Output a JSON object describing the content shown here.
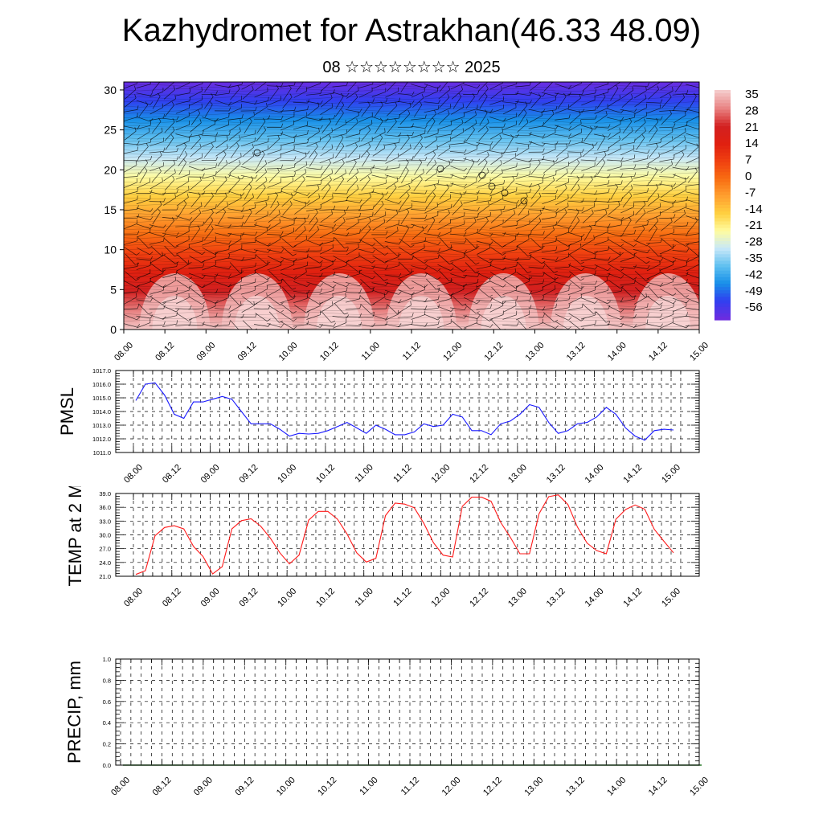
{
  "title": "Kazhydromet for Astrakhan(46.33 48.09)",
  "subtitle": "08 ☆☆☆☆☆☆☆☆ 2025",
  "chart_data": [
    {
      "type": "heatmap",
      "title": "",
      "xlabel": "",
      "ylabel": "",
      "x_tick_labels": [
        "08.00",
        "08.12",
        "09.00",
        "09.12",
        "10.00",
        "10.12",
        "11.00",
        "11.12",
        "12.00",
        "12.12",
        "13.00",
        "13.12",
        "14.00",
        "14.12",
        "15.00"
      ],
      "y_ticks": [
        0,
        5,
        10,
        15,
        20,
        25,
        30
      ],
      "ylim": [
        0,
        31
      ],
      "colorbar": {
        "labels": [
          "35",
          "28",
          "21",
          "14",
          "7",
          "0",
          "-7",
          "-14",
          "-21",
          "-28",
          "-35",
          "-42",
          "-49",
          "-56"
        ],
        "colors": [
          "#f4c8c8",
          "#e88080",
          "#d22020",
          "#e02010",
          "#f04010",
          "#f86d12",
          "#ffa030",
          "#ffd040",
          "#fffca0",
          "#c8e8f8",
          "#60c0f0",
          "#1890e8",
          "#3040f0",
          "#6a2ce0"
        ]
      },
      "wind_barbs": true
    },
    {
      "type": "line",
      "ylabel": "PMSL",
      "ylim": [
        1011.0,
        1017.0
      ],
      "y_tick_labels": [
        "1011.0",
        "1012.0",
        "1013.0",
        "1014.0",
        "1015.0",
        "1016.0",
        "1017.0"
      ],
      "x_tick_labels": [
        "08.00",
        "08.12",
        "09.00",
        "09.12",
        "10.00",
        "10.12",
        "11.00",
        "11.12",
        "12.00",
        "12.12",
        "13.00",
        "13.12",
        "14.00",
        "14.12",
        "15.00"
      ],
      "line_color": "#1a1aff",
      "series": [
        {
          "values": [
            1014.8,
            1016.0,
            1016.1,
            1015.2,
            1013.8,
            1013.5,
            1014.7,
            1014.7,
            1014.9,
            1015.1,
            1014.9,
            1014.0,
            1013.1,
            1013.1,
            1013.1,
            1012.7,
            1012.2,
            1012.4,
            1012.35,
            1012.4,
            1012.6,
            1012.9,
            1013.2,
            1012.8,
            1012.4,
            1013.0,
            1012.7,
            1012.3,
            1012.3,
            1012.5,
            1013.1,
            1012.9,
            1013.0,
            1013.8,
            1013.6,
            1012.6,
            1012.6,
            1012.3,
            1013.1,
            1013.3,
            1013.8,
            1014.5,
            1014.3,
            1013.2,
            1012.4,
            1012.6,
            1013.1,
            1013.2,
            1013.6,
            1014.3,
            1013.8,
            1012.8,
            1012.2,
            1011.9,
            1012.6,
            1012.7,
            1012.65
          ]
        }
      ]
    },
    {
      "type": "line",
      "ylabel": "TEMP at 2 M",
      "ylim": [
        21.0,
        39.0
      ],
      "y_tick_labels": [
        "21.0",
        "24.0",
        "27.0",
        "30.0",
        "33.0",
        "36.0",
        "39.0"
      ],
      "x_tick_labels": [
        "08.00",
        "08.12",
        "09.00",
        "09.12",
        "10.00",
        "10.12",
        "11.00",
        "11.12",
        "12.00",
        "12.12",
        "13.00",
        "13.12",
        "14.00",
        "14.12",
        "15.00"
      ],
      "line_color": "#ff1a1a",
      "series": [
        {
          "values": [
            21.4,
            22.2,
            29.8,
            31.6,
            32.0,
            31.3,
            27.5,
            25.3,
            21.5,
            23.1,
            31.3,
            33.1,
            33.5,
            31.9,
            29.3,
            26.1,
            23.7,
            25.6,
            33.2,
            35.1,
            35.1,
            33.4,
            30.2,
            26.1,
            24.1,
            24.9,
            34.2,
            36.9,
            36.7,
            35.9,
            32.5,
            28.3,
            25.6,
            25.2,
            36.2,
            38.2,
            38.2,
            37.3,
            32.7,
            29.5,
            25.9,
            25.9,
            34.6,
            38.3,
            38.7,
            36.6,
            31.7,
            28.2,
            26.6,
            25.9,
            33.4,
            35.5,
            36.5,
            35.6,
            31.2,
            28.6,
            26.1
          ]
        }
      ]
    },
    {
      "type": "line",
      "ylabel": "PRECIP, mm",
      "ylim": [
        0.0,
        1.0
      ],
      "y_tick_labels": [
        "0.0",
        "0.2",
        "0.4",
        "0.6",
        "0.8",
        "1.0"
      ],
      "x_tick_labels": [
        "08.00",
        "08.12",
        "09.00",
        "09.12",
        "10.00",
        "10.12",
        "11.00",
        "11.12",
        "12.00",
        "12.12",
        "13.00",
        "13.12",
        "14.00",
        "14.12",
        "15.00"
      ],
      "line_color": "#2a7a2a",
      "series": [
        {
          "values": [
            0,
            0,
            0,
            0,
            0,
            0,
            0,
            0,
            0,
            0,
            0,
            0,
            0,
            0,
            0,
            0,
            0,
            0,
            0,
            0,
            0,
            0,
            0,
            0,
            0,
            0,
            0,
            0,
            0,
            0,
            0,
            0,
            0,
            0,
            0,
            0,
            0,
            0,
            0,
            0,
            0,
            0,
            0,
            0,
            0,
            0,
            0,
            0,
            0,
            0,
            0,
            0,
            0,
            0,
            0,
            0,
            0
          ]
        }
      ]
    }
  ]
}
